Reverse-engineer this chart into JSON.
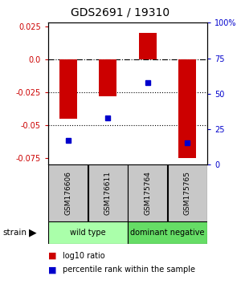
{
  "title": "GDS2691 / 19310",
  "samples": [
    "GSM176606",
    "GSM176611",
    "GSM175764",
    "GSM175765"
  ],
  "log10_ratios": [
    -0.045,
    -0.028,
    0.02,
    -0.075
  ],
  "percentile_ranks": [
    0.17,
    0.33,
    0.58,
    0.155
  ],
  "ylim_left": [
    -0.08,
    0.028
  ],
  "yticks_left": [
    0.025,
    0.0,
    -0.025,
    -0.05,
    -0.075
  ],
  "yticks_right": [
    1.0,
    0.75,
    0.5,
    0.25,
    0.0
  ],
  "ytick_labels_right": [
    "100%",
    "75",
    "50",
    "25",
    "0"
  ],
  "hline_dashdot": 0.0,
  "hlines_dotted": [
    -0.025,
    -0.05
  ],
  "bar_color": "#cc0000",
  "square_color": "#0000cc",
  "bar_width": 0.45,
  "groups": [
    {
      "label": "wild type",
      "samples": [
        0,
        1
      ],
      "color": "#aaffaa"
    },
    {
      "label": "dominant negative",
      "samples": [
        2,
        3
      ],
      "color": "#66dd66"
    }
  ],
  "strain_label": "strain",
  "legend_items": [
    {
      "color": "#cc0000",
      "label": "log10 ratio"
    },
    {
      "color": "#0000cc",
      "label": "percentile rank within the sample"
    }
  ],
  "left_tick_color": "#cc0000",
  "right_tick_color": "#0000cc",
  "sample_box_color": "#c8c8c8",
  "title_fontsize": 10,
  "tick_fontsize": 7,
  "legend_fontsize": 7
}
